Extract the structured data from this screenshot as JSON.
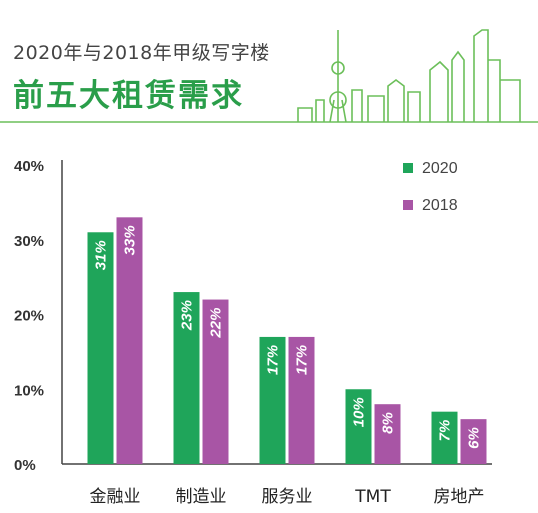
{
  "header": {
    "subtitle": "2020年与2018年甲级写字楼",
    "title": "前五大租赁需求"
  },
  "colors": {
    "series_2020": "#1fa55a",
    "series_2018": "#a855a5",
    "header_line": "#6cbf5a",
    "axis": "#444444",
    "label_text": "#ffffff"
  },
  "chart_data": {
    "type": "bar",
    "categories": [
      "金融业",
      "制造业",
      "服务业",
      "TMT",
      "房地产"
    ],
    "series": [
      {
        "name": "2020",
        "values": [
          31,
          23,
          17,
          10,
          7
        ],
        "labels": [
          "31%",
          "23%",
          "17%",
          "10%",
          "7%"
        ]
      },
      {
        "name": "2018",
        "values": [
          33,
          22,
          17,
          8,
          6
        ],
        "labels": [
          "33%",
          "22%",
          "17%",
          "8%",
          "6%"
        ]
      }
    ],
    "ylim": [
      0,
      40
    ],
    "yticks": [
      "0%",
      "10%",
      "20%",
      "30%",
      "40%"
    ],
    "legend_position": "top-right",
    "grid": false
  }
}
